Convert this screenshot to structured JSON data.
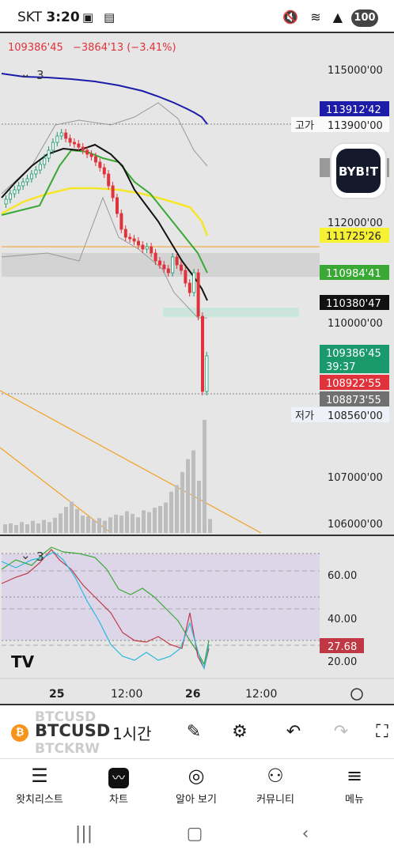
{
  "status_bar": {
    "carrier": "SKT",
    "time": "3:20",
    "battery": "100"
  },
  "chart": {
    "price_header": {
      "last": "109386'45",
      "change": "−3864'13 (−3.41%)"
    },
    "indicator_count_main": "3",
    "indicator_count_sub": "3",
    "exchange_logo": "BYB!T",
    "high_label": "고가",
    "low_label": "저가",
    "price_axis_labels": [
      "115000'00",
      "112000'00",
      "110000'00",
      "108560'00",
      "107000'00",
      "106000'00"
    ],
    "price_tags": {
      "line_blue": "113912'42",
      "high": "113900'00",
      "ma_yellow": "111725'26",
      "ma_green": "110984'41",
      "ma_black": "110380'47",
      "current": "109386'45",
      "countdown": "39:37",
      "red_tag": "108922'55",
      "grey_tag": "108873'55",
      "low": "108560'00"
    },
    "rsi_axis_labels": [
      "60.00",
      "40.00",
      "20.00"
    ],
    "rsi_value": "27.68",
    "time_axis_labels": [
      "25",
      "12:00",
      "26",
      "12:00"
    ],
    "tv_logo": "TV",
    "colors": {
      "up": "#1a9a6c",
      "down": "#e0323a",
      "blue_line": "#1c1ca8",
      "yellow_ma": "#f5e629",
      "green_ma": "#3aa835",
      "black_ma": "#111111"
    }
  },
  "chart_data": {
    "type": "line",
    "title": "",
    "x_ticks": [
      "25",
      "12:00",
      "26",
      "12:00"
    ],
    "ylim": [
      105800,
      115600
    ],
    "series": [
      {
        "name": "",
        "values": [
          112300,
          112500,
          112700,
          112900,
          113100,
          113400,
          113300,
          113200,
          112900,
          112700,
          112200,
          111800,
          111500,
          111200,
          111000,
          110900,
          110800,
          110600,
          108900,
          109386
        ]
      }
    ]
  },
  "toolbar": {
    "symbol": "BTCUSD",
    "symbol_ghost_top": "BTCUSD",
    "symbol_ghost_bottom": "BTCKRW",
    "interval": "1시간"
  },
  "tabs": [
    {
      "label": "왓치리스트",
      "icon": "watchlist-icon"
    },
    {
      "label": "차트",
      "icon": "chart-icon"
    },
    {
      "label": "알아 보기",
      "icon": "compass-icon"
    },
    {
      "label": "커뮤니티",
      "icon": "community-icon"
    },
    {
      "label": "메뉴",
      "icon": "menu-icon"
    }
  ]
}
